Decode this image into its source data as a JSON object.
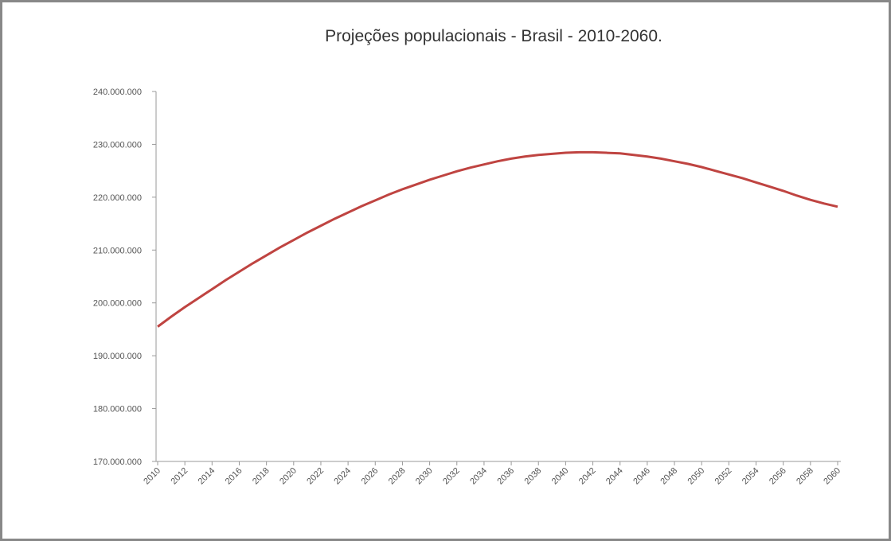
{
  "chart_data": {
    "type": "line",
    "title": "Projeções populacionais - Brasil - 2010-2060.",
    "categories": [
      "2010",
      null,
      "2012",
      null,
      "2014",
      null,
      "2016",
      null,
      "2018",
      null,
      "2020",
      null,
      "2022",
      null,
      "2024",
      null,
      "2026",
      null,
      "2028",
      null,
      "2030",
      null,
      "2032",
      null,
      "2034",
      null,
      "2036",
      null,
      "2038",
      null,
      "2040",
      null,
      "2042",
      null,
      "2044",
      null,
      "2046",
      null,
      "2048",
      null,
      "2050",
      null,
      "2052",
      null,
      "2054",
      null,
      "2056",
      null,
      "2058",
      null,
      "2060"
    ],
    "series": [
      {
        "color": "#bf4441",
        "values": [
          195500000,
          197400000,
          199200000,
          200900000,
          202600000,
          204300000,
          205900000,
          207500000,
          209000000,
          210500000,
          211900000,
          213300000,
          214600000,
          215900000,
          217100000,
          218300000,
          219400000,
          220500000,
          221500000,
          222400000,
          223300000,
          224100000,
          224900000,
          225600000,
          226200000,
          226800000,
          227300000,
          227700000,
          228000000,
          228200000,
          228400000,
          228500000,
          228500000,
          228400000,
          228300000,
          228000000,
          227700000,
          227300000,
          226800000,
          226300000,
          225700000,
          225000000,
          224300000,
          223600000,
          222800000,
          222000000,
          221200000,
          220300000,
          219500000,
          218800000,
          218200000
        ]
      }
    ],
    "ylim": [
      170000000,
      240000000
    ],
    "yticks": [
      {
        "value": 170000000,
        "label": "170.000.000"
      },
      {
        "value": 180000000,
        "label": "180.000.000"
      },
      {
        "value": 190000000,
        "label": "190.000.000"
      },
      {
        "value": 200000000,
        "label": "200.000.000"
      },
      {
        "value": 210000000,
        "label": "210.000.000"
      },
      {
        "value": 220000000,
        "label": "220.000.000"
      },
      {
        "value": 230000000,
        "label": "230.000.000"
      },
      {
        "value": 240000000,
        "label": "240.000.000"
      }
    ],
    "grid": false
  }
}
